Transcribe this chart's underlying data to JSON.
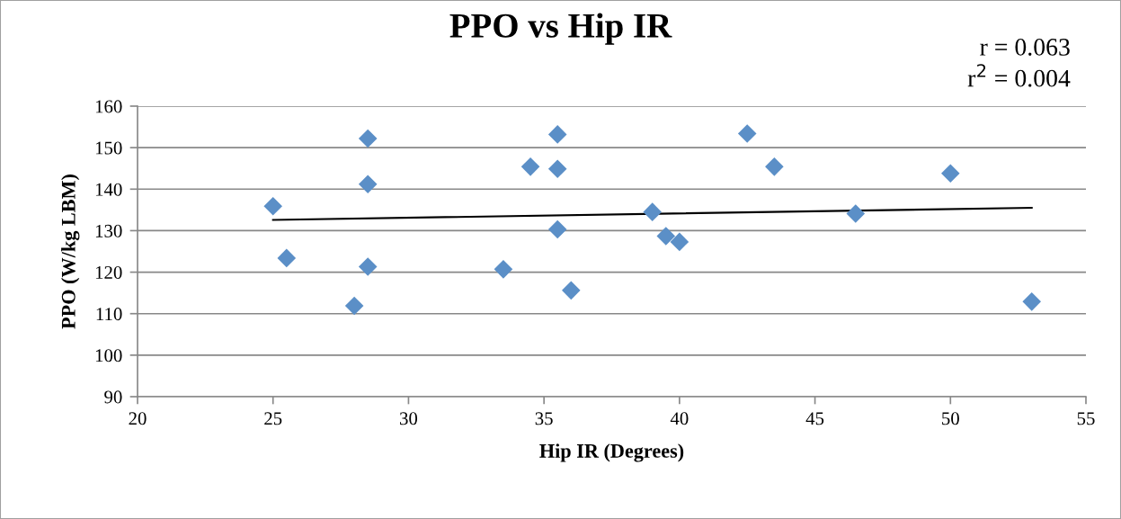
{
  "chart_data": {
    "type": "scatter",
    "title": "PPO vs Hip IR",
    "xlabel": "Hip IR (Degrees)",
    "ylabel": "PPO (W/kg LBM)",
    "annotations": [
      "r = 0.063",
      "r$^{2}$ = 0.004"
    ],
    "series": [
      {
        "color": "#5b8fc7",
        "marker": "diamond",
        "x": [
          25,
          25.5,
          28.5,
          28.5,
          28.5,
          28,
          33.5,
          34.5,
          35.5,
          35.5,
          35.5,
          36,
          39,
          39.5,
          40,
          42.5,
          43.5,
          46.5,
          50,
          53
        ],
        "values": [
          135.9,
          123.4,
          152.2,
          141.2,
          121.3,
          111.9,
          120.7,
          145.4,
          153.2,
          144.9,
          130.3,
          115.6,
          134.5,
          128.7,
          127.3,
          153.4,
          145.4,
          134.1,
          143.8,
          112.9
        ]
      },
      {
        "type": "line",
        "color": "#000000",
        "marker": "none",
        "x": [
          25,
          53
        ],
        "values": [
          132.6,
          135.5
        ]
      }
    ],
    "xlim": [
      20,
      55
    ],
    "xticks": [
      20,
      25,
      30,
      35,
      40,
      45,
      50,
      55
    ],
    "ylim": [
      90,
      160
    ],
    "yticks": [
      90,
      100,
      110,
      120,
      130,
      140,
      150,
      160
    ],
    "grid": "y",
    "legend": false
  }
}
